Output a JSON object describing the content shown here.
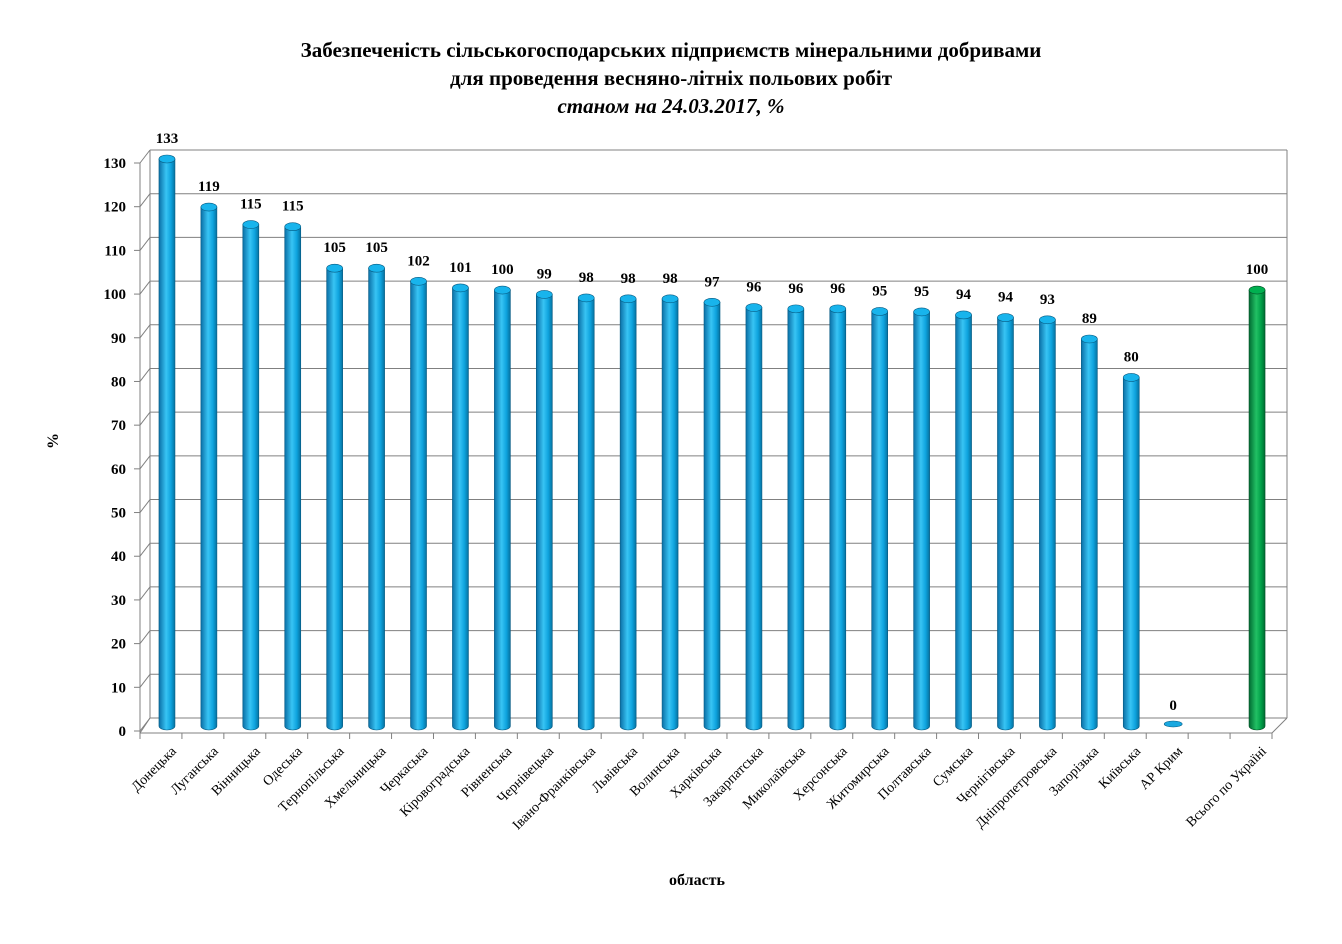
{
  "chart_data": {
    "type": "bar",
    "title": "Забезпеченість сільськогосподарських підприємств мінеральними добривами",
    "title_line2": "для проведення весняно-літніх польових робіт",
    "subtitle": "станом на 24.03.2017, %",
    "xlabel": "область",
    "ylabel": "%",
    "ylim": [
      0,
      130
    ],
    "y_ticks": [
      "0",
      "10",
      "20",
      "30",
      "40",
      "50",
      "60",
      "70",
      "80",
      "90",
      "100",
      "110",
      "120",
      "130"
    ],
    "grid": true,
    "categories": [
      "Донецька",
      "Луганська",
      "Вінницька",
      "Одеська",
      "Тернопільська",
      "Хмельницька",
      "Черкаська",
      "Кіровоградська",
      "Рівненська",
      "Чернівецька",
      "Івано-Франківська",
      "Львівська",
      "Волинська",
      "Харківська",
      "Закарпатська",
      "Миколаївська",
      "Херсонська",
      "Житомирська",
      "Полтавська",
      "Сумська",
      "Чернігівська",
      "Дніпропетровська",
      "Запорізька",
      "Київська",
      "АР Крим",
      "",
      "Всього по Україні"
    ],
    "values": [
      133,
      119,
      115,
      115,
      105,
      105,
      102,
      101,
      100,
      99,
      98,
      98,
      98,
      97,
      96,
      96,
      96,
      95,
      95,
      94,
      94,
      93,
      89,
      80,
      0,
      null,
      100
    ],
    "value_labels": [
      "133",
      "119",
      "115",
      "115",
      "105",
      "105",
      "102",
      "101",
      "100",
      "99",
      "98",
      "98",
      "98",
      "97",
      "96",
      "96",
      "96",
      "95",
      "95",
      "94",
      "94",
      "93",
      "89",
      "80",
      "0",
      "",
      "100"
    ],
    "heights": [
      130,
      119,
      115,
      114.5,
      105,
      105,
      102,
      100.5,
      100,
      99,
      98.2,
      98,
      98,
      97.2,
      96,
      95.7,
      95.7,
      95.1,
      95,
      94.3,
      93.7,
      93.2,
      88.8,
      80,
      0,
      null,
      100
    ],
    "colors": {
      "regions": "#00a0e0",
      "total": "#00a050"
    }
  }
}
